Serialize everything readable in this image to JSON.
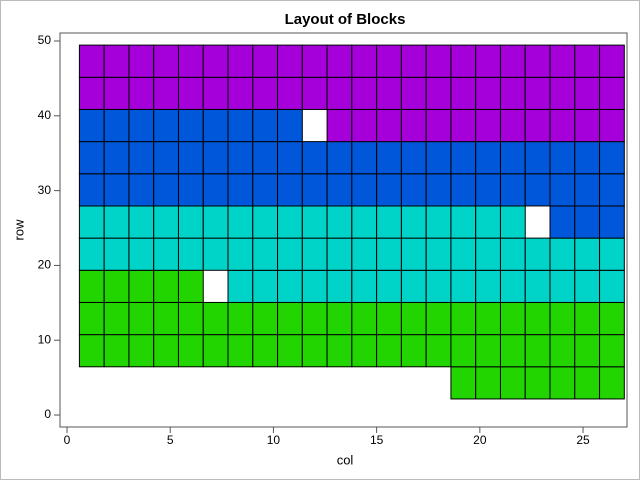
{
  "chart_data": {
    "type": "tiles",
    "title": "Layout of Blocks",
    "x_label": "col",
    "y_label": "row",
    "xlim": [
      -0.34,
      27.13
    ],
    "ylim": [
      -1.6,
      51.07
    ],
    "xticks": [
      0,
      5,
      10,
      15,
      20,
      25
    ],
    "yticks": [
      0,
      10,
      20,
      30,
      40,
      50
    ],
    "series": [
      {
        "color": "#22d400",
        "points": [
          [
            19.2,
            4.3
          ],
          [
            20.4,
            4.3
          ],
          [
            21.6,
            4.3
          ],
          [
            22.8,
            4.3
          ],
          [
            24,
            4.3
          ],
          [
            25.2,
            4.3
          ],
          [
            26.4,
            4.3
          ],
          [
            1.2,
            8.6
          ],
          [
            2.4,
            8.6
          ],
          [
            3.6,
            8.6
          ],
          [
            4.8,
            8.6
          ],
          [
            6,
            8.6
          ],
          [
            7.2,
            8.6
          ],
          [
            8.4,
            8.6
          ],
          [
            9.6,
            8.6
          ],
          [
            10.8,
            8.6
          ],
          [
            12,
            8.6
          ],
          [
            13.2,
            8.6
          ],
          [
            14.4,
            8.6
          ],
          [
            15.6,
            8.6
          ],
          [
            16.8,
            8.6
          ],
          [
            18,
            8.6
          ],
          [
            19.2,
            8.6
          ],
          [
            20.4,
            8.6
          ],
          [
            21.6,
            8.6
          ],
          [
            22.8,
            8.6
          ],
          [
            24,
            8.6
          ],
          [
            25.2,
            8.6
          ],
          [
            26.4,
            8.6
          ],
          [
            1.2,
            12.9
          ],
          [
            2.4,
            12.9
          ],
          [
            3.6,
            12.9
          ],
          [
            4.8,
            12.9
          ],
          [
            6,
            12.9
          ],
          [
            7.2,
            12.9
          ],
          [
            8.4,
            12.9
          ],
          [
            9.6,
            12.9
          ],
          [
            10.8,
            12.9
          ],
          [
            12,
            12.9
          ],
          [
            13.2,
            12.9
          ],
          [
            14.4,
            12.9
          ],
          [
            15.6,
            12.9
          ],
          [
            16.8,
            12.9
          ],
          [
            18,
            12.9
          ],
          [
            19.2,
            12.9
          ],
          [
            20.4,
            12.9
          ],
          [
            21.6,
            12.9
          ],
          [
            22.8,
            12.9
          ],
          [
            24,
            12.9
          ],
          [
            25.2,
            12.9
          ],
          [
            26.4,
            12.9
          ],
          [
            1.2,
            17.2
          ],
          [
            2.4,
            17.2
          ],
          [
            3.6,
            17.2
          ],
          [
            4.8,
            17.2
          ],
          [
            6,
            17.2
          ]
        ]
      },
      {
        "color": "#00d4c8",
        "points": [
          [
            8.4,
            17.2
          ],
          [
            9.6,
            17.2
          ],
          [
            10.8,
            17.2
          ],
          [
            12,
            17.2
          ],
          [
            13.2,
            17.2
          ],
          [
            14.4,
            17.2
          ],
          [
            15.6,
            17.2
          ],
          [
            16.8,
            17.2
          ],
          [
            18,
            17.2
          ],
          [
            19.2,
            17.2
          ],
          [
            20.4,
            17.2
          ],
          [
            21.6,
            17.2
          ],
          [
            22.8,
            17.2
          ],
          [
            24,
            17.2
          ],
          [
            25.2,
            17.2
          ],
          [
            26.4,
            17.2
          ],
          [
            1.2,
            21.5
          ],
          [
            2.4,
            21.5
          ],
          [
            3.6,
            21.5
          ],
          [
            4.8,
            21.5
          ],
          [
            6,
            21.5
          ],
          [
            7.2,
            21.5
          ],
          [
            8.4,
            21.5
          ],
          [
            9.6,
            21.5
          ],
          [
            10.8,
            21.5
          ],
          [
            12,
            21.5
          ],
          [
            13.2,
            21.5
          ],
          [
            14.4,
            21.5
          ],
          [
            15.6,
            21.5
          ],
          [
            16.8,
            21.5
          ],
          [
            18,
            21.5
          ],
          [
            19.2,
            21.5
          ],
          [
            20.4,
            21.5
          ],
          [
            21.6,
            21.5
          ],
          [
            22.8,
            21.5
          ],
          [
            24,
            21.5
          ],
          [
            25.2,
            21.5
          ],
          [
            26.4,
            21.5
          ],
          [
            1.2,
            25.8
          ],
          [
            2.4,
            25.8
          ],
          [
            3.6,
            25.8
          ],
          [
            4.8,
            25.8
          ],
          [
            6,
            25.8
          ],
          [
            7.2,
            25.8
          ],
          [
            8.4,
            25.8
          ],
          [
            9.6,
            25.8
          ],
          [
            10.8,
            25.8
          ],
          [
            12,
            25.8
          ],
          [
            13.2,
            25.8
          ],
          [
            14.4,
            25.8
          ],
          [
            15.6,
            25.8
          ],
          [
            16.8,
            25.8
          ],
          [
            18,
            25.8
          ],
          [
            19.2,
            25.8
          ],
          [
            20.4,
            25.8
          ],
          [
            21.6,
            25.8
          ]
        ]
      },
      {
        "color": "#0057d9",
        "points": [
          [
            24,
            25.8
          ],
          [
            25.2,
            25.8
          ],
          [
            26.4,
            25.8
          ],
          [
            1.2,
            30.1
          ],
          [
            2.4,
            30.1
          ],
          [
            3.6,
            30.1
          ],
          [
            4.8,
            30.1
          ],
          [
            6,
            30.1
          ],
          [
            7.2,
            30.1
          ],
          [
            8.4,
            30.1
          ],
          [
            9.6,
            30.1
          ],
          [
            10.8,
            30.1
          ],
          [
            12,
            30.1
          ],
          [
            13.2,
            30.1
          ],
          [
            14.4,
            30.1
          ],
          [
            15.6,
            30.1
          ],
          [
            16.8,
            30.1
          ],
          [
            18,
            30.1
          ],
          [
            19.2,
            30.1
          ],
          [
            20.4,
            30.1
          ],
          [
            21.6,
            30.1
          ],
          [
            22.8,
            30.1
          ],
          [
            24,
            30.1
          ],
          [
            25.2,
            30.1
          ],
          [
            26.4,
            30.1
          ],
          [
            1.2,
            34.4
          ],
          [
            2.4,
            34.4
          ],
          [
            3.6,
            34.4
          ],
          [
            4.8,
            34.4
          ],
          [
            6,
            34.4
          ],
          [
            7.2,
            34.4
          ],
          [
            8.4,
            34.4
          ],
          [
            9.6,
            34.4
          ],
          [
            10.8,
            34.4
          ],
          [
            12,
            34.4
          ],
          [
            13.2,
            34.4
          ],
          [
            14.4,
            34.4
          ],
          [
            15.6,
            34.4
          ],
          [
            16.8,
            34.4
          ],
          [
            18,
            34.4
          ],
          [
            19.2,
            34.4
          ],
          [
            20.4,
            34.4
          ],
          [
            21.6,
            34.4
          ],
          [
            22.8,
            34.4
          ],
          [
            24,
            34.4
          ],
          [
            25.2,
            34.4
          ],
          [
            26.4,
            34.4
          ],
          [
            1.2,
            38.7
          ],
          [
            2.4,
            38.7
          ],
          [
            3.6,
            38.7
          ],
          [
            4.8,
            38.7
          ],
          [
            6,
            38.7
          ],
          [
            7.2,
            38.7
          ],
          [
            8.4,
            38.7
          ],
          [
            9.6,
            38.7
          ],
          [
            10.8,
            38.7
          ]
        ]
      },
      {
        "color": "#a500d9",
        "points": [
          [
            13.2,
            38.7
          ],
          [
            14.4,
            38.7
          ],
          [
            15.6,
            38.7
          ],
          [
            16.8,
            38.7
          ],
          [
            18,
            38.7
          ],
          [
            19.2,
            38.7
          ],
          [
            20.4,
            38.7
          ],
          [
            21.6,
            38.7
          ],
          [
            22.8,
            38.7
          ],
          [
            24,
            38.7
          ],
          [
            25.2,
            38.7
          ],
          [
            26.4,
            38.7
          ],
          [
            1.2,
            43
          ],
          [
            2.4,
            43
          ],
          [
            3.6,
            43
          ],
          [
            4.8,
            43
          ],
          [
            6,
            43
          ],
          [
            7.2,
            43
          ],
          [
            8.4,
            43
          ],
          [
            9.6,
            43
          ],
          [
            10.8,
            43
          ],
          [
            12,
            43
          ],
          [
            13.2,
            43
          ],
          [
            14.4,
            43
          ],
          [
            15.6,
            43
          ],
          [
            16.8,
            43
          ],
          [
            18,
            43
          ],
          [
            19.2,
            43
          ],
          [
            20.4,
            43
          ],
          [
            21.6,
            43
          ],
          [
            22.8,
            43
          ],
          [
            24,
            43
          ],
          [
            25.2,
            43
          ],
          [
            26.4,
            43
          ],
          [
            1.2,
            47.3
          ],
          [
            2.4,
            47.3
          ],
          [
            3.6,
            47.3
          ],
          [
            4.8,
            47.3
          ],
          [
            6,
            47.3
          ],
          [
            7.2,
            47.3
          ],
          [
            8.4,
            47.3
          ],
          [
            9.6,
            47.3
          ],
          [
            10.8,
            47.3
          ],
          [
            12,
            47.3
          ],
          [
            13.2,
            47.3
          ],
          [
            14.4,
            47.3
          ],
          [
            15.6,
            47.3
          ],
          [
            16.8,
            47.3
          ],
          [
            18,
            47.3
          ],
          [
            19.2,
            47.3
          ],
          [
            20.4,
            47.3
          ],
          [
            21.6,
            47.3
          ],
          [
            22.8,
            47.3
          ],
          [
            24,
            47.3
          ],
          [
            25.2,
            47.3
          ],
          [
            26.4,
            47.3
          ]
        ]
      }
    ]
  }
}
